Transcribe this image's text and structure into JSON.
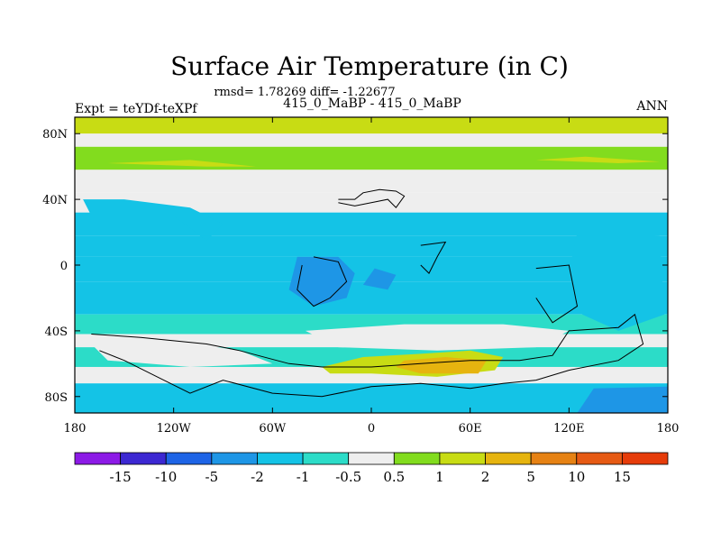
{
  "chart_data": {
    "type": "heatmap",
    "title": "Surface Air Temperature (in C)",
    "subtitle": "rmsd= 1.78269 diff= -1.22677",
    "left_label": "Expt = teYDf-teXPf",
    "center_label": "415_0_MaBP - 415_0_MaBP",
    "right_label": "ANN",
    "xlim": [
      -180,
      180
    ],
    "ylim": [
      -90,
      90
    ],
    "x_ticks": [
      {
        "value": -180,
        "label": "180"
      },
      {
        "value": -120,
        "label": "120W"
      },
      {
        "value": -60,
        "label": "60W"
      },
      {
        "value": 0,
        "label": "0"
      },
      {
        "value": 60,
        "label": "60E"
      },
      {
        "value": 120,
        "label": "120E"
      },
      {
        "value": 180,
        "label": "180"
      }
    ],
    "y_ticks": [
      {
        "value": 80,
        "label": "80N"
      },
      {
        "value": 40,
        "label": "40N"
      },
      {
        "value": 0,
        "label": "0"
      },
      {
        "value": -40,
        "label": "40S"
      },
      {
        "value": -80,
        "label": "80S"
      }
    ],
    "colorbar": {
      "colors": [
        "#8c1ae6",
        "#3c28d2",
        "#1e64e6",
        "#1e96e6",
        "#14c3e6",
        "#2cdcc8",
        "#eeeeee",
        "#82dc1e",
        "#c8dc14",
        "#e6b40f",
        "#e68214",
        "#e65a14",
        "#e63c0a"
      ],
      "labels": [
        "-15",
        "-10",
        "-5",
        "-2",
        "-1",
        "-0.5",
        "0.5",
        "1",
        "2",
        "5",
        "10",
        "15"
      ]
    },
    "zonal_bands": [
      {
        "lat": [
          80,
          90
        ],
        "value": 1.2
      },
      {
        "lat": [
          72,
          80
        ],
        "value": -0.3
      },
      {
        "lat": [
          58,
          72
        ],
        "value": 0.9
      },
      {
        "lat": [
          44,
          58
        ],
        "value": -0.3
      },
      {
        "lat": [
          32,
          44
        ],
        "value": 0.0
      },
      {
        "lat": [
          18,
          32
        ],
        "value": -1.4
      },
      {
        "lat": [
          5,
          18
        ],
        "value": -1.8
      },
      {
        "lat": [
          -10,
          5
        ],
        "value": -1.2
      },
      {
        "lat": [
          -30,
          -10
        ],
        "value": -1.6
      },
      {
        "lat": [
          -42,
          -30
        ],
        "value": -0.7
      },
      {
        "lat": [
          -50,
          -42
        ],
        "value": 0.0
      },
      {
        "lat": [
          -62,
          -50
        ],
        "value": -0.6
      },
      {
        "lat": [
          -72,
          -62
        ],
        "value": 0.3
      },
      {
        "lat": [
          -90,
          -72
        ],
        "value": -1.5
      }
    ],
    "regions": [
      {
        "name": "north-america-cold",
        "value": -1.5,
        "points": [
          [
            -170,
            30
          ],
          [
            -120,
            30
          ],
          [
            -100,
            15
          ],
          [
            -90,
            25
          ],
          [
            -110,
            35
          ],
          [
            -150,
            40
          ],
          [
            -175,
            40
          ]
        ]
      },
      {
        "name": "south-atlantic-cold",
        "value": -3.0,
        "points": [
          [
            -45,
            5
          ],
          [
            -20,
            5
          ],
          [
            -10,
            -5
          ],
          [
            -15,
            -20
          ],
          [
            -35,
            -25
          ],
          [
            -50,
            -15
          ]
        ]
      },
      {
        "name": "central-cold",
        "value": -3.0,
        "points": [
          [
            2,
            -2
          ],
          [
            15,
            -6
          ],
          [
            10,
            -15
          ],
          [
            -5,
            -12
          ]
        ]
      },
      {
        "name": "warm-east",
        "value": 1.2,
        "points": [
          [
            -30,
            -62
          ],
          [
            -5,
            -56
          ],
          [
            30,
            -54
          ],
          [
            60,
            -52
          ],
          [
            80,
            -56
          ],
          [
            75,
            -64
          ],
          [
            40,
            -68
          ],
          [
            0,
            -66
          ],
          [
            -25,
            -66
          ]
        ]
      },
      {
        "name": "warm-core",
        "value": 2.5,
        "points": [
          [
            20,
            -58
          ],
          [
            45,
            -56
          ],
          [
            70,
            -58
          ],
          [
            65,
            -66
          ],
          [
            30,
            -66
          ],
          [
            15,
            -62
          ]
        ]
      },
      {
        "name": "neutral-south",
        "value": 0.0,
        "points": [
          [
            -170,
            -48
          ],
          [
            -120,
            -46
          ],
          [
            -80,
            -52
          ],
          [
            -60,
            -60
          ],
          [
            -110,
            -62
          ],
          [
            -160,
            -58
          ]
        ]
      },
      {
        "name": "neutral-south-2",
        "value": 0.0,
        "points": [
          [
            -40,
            -40
          ],
          [
            20,
            -36
          ],
          [
            80,
            -36
          ],
          [
            120,
            -40
          ],
          [
            100,
            -50
          ],
          [
            40,
            -52
          ],
          [
            -20,
            -50
          ]
        ]
      },
      {
        "name": "east-pacific-blue",
        "value": -1.6,
        "points": [
          [
            125,
            20
          ],
          [
            175,
            18
          ],
          [
            178,
            -30
          ],
          [
            150,
            -40
          ],
          [
            128,
            -30
          ],
          [
            120,
            -5
          ]
        ]
      },
      {
        "name": "southeast-blue",
        "value": -3.0,
        "points": [
          [
            135,
            -75
          ],
          [
            180,
            -74
          ],
          [
            180,
            -90
          ],
          [
            125,
            -90
          ]
        ]
      },
      {
        "name": "north-warm-strip",
        "value": 1.5,
        "points": [
          [
            -160,
            62
          ],
          [
            -100,
            60
          ],
          [
            -70,
            60
          ],
          [
            -110,
            64
          ]
        ]
      },
      {
        "name": "north-warm-strip-2",
        "value": 1.5,
        "points": [
          [
            100,
            64
          ],
          [
            150,
            62
          ],
          [
            175,
            63
          ],
          [
            130,
            66
          ]
        ]
      }
    ],
    "coastlines": [
      [
        [
          -20,
          40
        ],
        [
          -10,
          40
        ],
        [
          -5,
          44
        ],
        [
          5,
          46
        ],
        [
          15,
          45
        ],
        [
          20,
          42
        ],
        [
          15,
          35
        ],
        [
          10,
          40
        ],
        [
          0,
          38
        ],
        [
          -10,
          36
        ],
        [
          -20,
          38
        ]
      ],
      [
        [
          -35,
          5
        ],
        [
          -20,
          2
        ],
        [
          -15,
          -10
        ],
        [
          -25,
          -20
        ],
        [
          -35,
          -25
        ],
        [
          -45,
          -15
        ],
        [
          -42,
          0
        ]
      ],
      [
        [
          30,
          12
        ],
        [
          45,
          14
        ],
        [
          40,
          5
        ],
        [
          35,
          -5
        ],
        [
          30,
          0
        ]
      ],
      [
        [
          100,
          -2
        ],
        [
          120,
          0
        ],
        [
          125,
          -25
        ],
        [
          110,
          -35
        ],
        [
          100,
          -20
        ]
      ],
      [
        [
          -170,
          -42
        ],
        [
          -140,
          -44
        ],
        [
          -100,
          -48
        ],
        [
          -80,
          -52
        ],
        [
          -50,
          -60
        ],
        [
          -30,
          -62
        ],
        [
          0,
          -62
        ],
        [
          30,
          -60
        ],
        [
          60,
          -58
        ],
        [
          90,
          -58
        ],
        [
          110,
          -55
        ],
        [
          120,
          -40
        ],
        [
          150,
          -38
        ],
        [
          160,
          -30
        ],
        [
          165,
          -48
        ],
        [
          150,
          -58
        ],
        [
          120,
          -64
        ],
        [
          100,
          -70
        ],
        [
          80,
          -72
        ],
        [
          60,
          -75
        ],
        [
          30,
          -72
        ],
        [
          0,
          -74
        ],
        [
          -30,
          -80
        ],
        [
          -60,
          -78
        ],
        [
          -90,
          -70
        ],
        [
          -110,
          -78
        ],
        [
          -130,
          -68
        ],
        [
          -150,
          -58
        ],
        [
          -165,
          -52
        ]
      ]
    ]
  }
}
